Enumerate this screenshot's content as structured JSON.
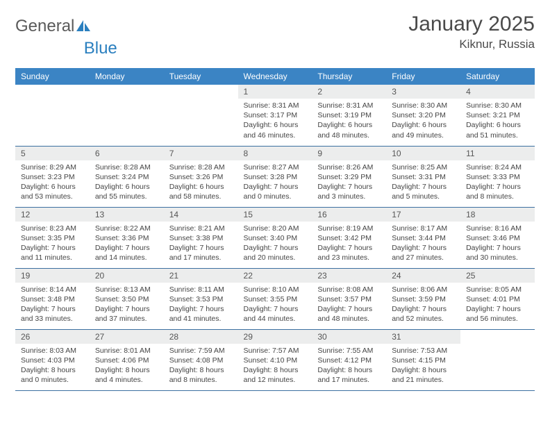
{
  "logo": {
    "text1": "General",
    "text2": "Blue"
  },
  "title": "January 2025",
  "location": "Kiknur, Russia",
  "colors": {
    "header_bg": "#3b84c4",
    "header_fg": "#ffffff",
    "daynum_bg": "#eceded",
    "row_border": "#3b6fa0",
    "logo_gray": "#5a5a5a",
    "logo_blue": "#2a7fbf"
  },
  "weekdays": [
    "Sunday",
    "Monday",
    "Tuesday",
    "Wednesday",
    "Thursday",
    "Friday",
    "Saturday"
  ],
  "weeks": [
    [
      {
        "n": "",
        "sr": "",
        "ss": "",
        "d1": "",
        "d2": ""
      },
      {
        "n": "",
        "sr": "",
        "ss": "",
        "d1": "",
        "d2": ""
      },
      {
        "n": "",
        "sr": "",
        "ss": "",
        "d1": "",
        "d2": ""
      },
      {
        "n": "1",
        "sr": "Sunrise: 8:31 AM",
        "ss": "Sunset: 3:17 PM",
        "d1": "Daylight: 6 hours",
        "d2": "and 46 minutes."
      },
      {
        "n": "2",
        "sr": "Sunrise: 8:31 AM",
        "ss": "Sunset: 3:19 PM",
        "d1": "Daylight: 6 hours",
        "d2": "and 48 minutes."
      },
      {
        "n": "3",
        "sr": "Sunrise: 8:30 AM",
        "ss": "Sunset: 3:20 PM",
        "d1": "Daylight: 6 hours",
        "d2": "and 49 minutes."
      },
      {
        "n": "4",
        "sr": "Sunrise: 8:30 AM",
        "ss": "Sunset: 3:21 PM",
        "d1": "Daylight: 6 hours",
        "d2": "and 51 minutes."
      }
    ],
    [
      {
        "n": "5",
        "sr": "Sunrise: 8:29 AM",
        "ss": "Sunset: 3:23 PM",
        "d1": "Daylight: 6 hours",
        "d2": "and 53 minutes."
      },
      {
        "n": "6",
        "sr": "Sunrise: 8:28 AM",
        "ss": "Sunset: 3:24 PM",
        "d1": "Daylight: 6 hours",
        "d2": "and 55 minutes."
      },
      {
        "n": "7",
        "sr": "Sunrise: 8:28 AM",
        "ss": "Sunset: 3:26 PM",
        "d1": "Daylight: 6 hours",
        "d2": "and 58 minutes."
      },
      {
        "n": "8",
        "sr": "Sunrise: 8:27 AM",
        "ss": "Sunset: 3:28 PM",
        "d1": "Daylight: 7 hours",
        "d2": "and 0 minutes."
      },
      {
        "n": "9",
        "sr": "Sunrise: 8:26 AM",
        "ss": "Sunset: 3:29 PM",
        "d1": "Daylight: 7 hours",
        "d2": "and 3 minutes."
      },
      {
        "n": "10",
        "sr": "Sunrise: 8:25 AM",
        "ss": "Sunset: 3:31 PM",
        "d1": "Daylight: 7 hours",
        "d2": "and 5 minutes."
      },
      {
        "n": "11",
        "sr": "Sunrise: 8:24 AM",
        "ss": "Sunset: 3:33 PM",
        "d1": "Daylight: 7 hours",
        "d2": "and 8 minutes."
      }
    ],
    [
      {
        "n": "12",
        "sr": "Sunrise: 8:23 AM",
        "ss": "Sunset: 3:35 PM",
        "d1": "Daylight: 7 hours",
        "d2": "and 11 minutes."
      },
      {
        "n": "13",
        "sr": "Sunrise: 8:22 AM",
        "ss": "Sunset: 3:36 PM",
        "d1": "Daylight: 7 hours",
        "d2": "and 14 minutes."
      },
      {
        "n": "14",
        "sr": "Sunrise: 8:21 AM",
        "ss": "Sunset: 3:38 PM",
        "d1": "Daylight: 7 hours",
        "d2": "and 17 minutes."
      },
      {
        "n": "15",
        "sr": "Sunrise: 8:20 AM",
        "ss": "Sunset: 3:40 PM",
        "d1": "Daylight: 7 hours",
        "d2": "and 20 minutes."
      },
      {
        "n": "16",
        "sr": "Sunrise: 8:19 AM",
        "ss": "Sunset: 3:42 PM",
        "d1": "Daylight: 7 hours",
        "d2": "and 23 minutes."
      },
      {
        "n": "17",
        "sr": "Sunrise: 8:17 AM",
        "ss": "Sunset: 3:44 PM",
        "d1": "Daylight: 7 hours",
        "d2": "and 27 minutes."
      },
      {
        "n": "18",
        "sr": "Sunrise: 8:16 AM",
        "ss": "Sunset: 3:46 PM",
        "d1": "Daylight: 7 hours",
        "d2": "and 30 minutes."
      }
    ],
    [
      {
        "n": "19",
        "sr": "Sunrise: 8:14 AM",
        "ss": "Sunset: 3:48 PM",
        "d1": "Daylight: 7 hours",
        "d2": "and 33 minutes."
      },
      {
        "n": "20",
        "sr": "Sunrise: 8:13 AM",
        "ss": "Sunset: 3:50 PM",
        "d1": "Daylight: 7 hours",
        "d2": "and 37 minutes."
      },
      {
        "n": "21",
        "sr": "Sunrise: 8:11 AM",
        "ss": "Sunset: 3:53 PM",
        "d1": "Daylight: 7 hours",
        "d2": "and 41 minutes."
      },
      {
        "n": "22",
        "sr": "Sunrise: 8:10 AM",
        "ss": "Sunset: 3:55 PM",
        "d1": "Daylight: 7 hours",
        "d2": "and 44 minutes."
      },
      {
        "n": "23",
        "sr": "Sunrise: 8:08 AM",
        "ss": "Sunset: 3:57 PM",
        "d1": "Daylight: 7 hours",
        "d2": "and 48 minutes."
      },
      {
        "n": "24",
        "sr": "Sunrise: 8:06 AM",
        "ss": "Sunset: 3:59 PM",
        "d1": "Daylight: 7 hours",
        "d2": "and 52 minutes."
      },
      {
        "n": "25",
        "sr": "Sunrise: 8:05 AM",
        "ss": "Sunset: 4:01 PM",
        "d1": "Daylight: 7 hours",
        "d2": "and 56 minutes."
      }
    ],
    [
      {
        "n": "26",
        "sr": "Sunrise: 8:03 AM",
        "ss": "Sunset: 4:03 PM",
        "d1": "Daylight: 8 hours",
        "d2": "and 0 minutes."
      },
      {
        "n": "27",
        "sr": "Sunrise: 8:01 AM",
        "ss": "Sunset: 4:06 PM",
        "d1": "Daylight: 8 hours",
        "d2": "and 4 minutes."
      },
      {
        "n": "28",
        "sr": "Sunrise: 7:59 AM",
        "ss": "Sunset: 4:08 PM",
        "d1": "Daylight: 8 hours",
        "d2": "and 8 minutes."
      },
      {
        "n": "29",
        "sr": "Sunrise: 7:57 AM",
        "ss": "Sunset: 4:10 PM",
        "d1": "Daylight: 8 hours",
        "d2": "and 12 minutes."
      },
      {
        "n": "30",
        "sr": "Sunrise: 7:55 AM",
        "ss": "Sunset: 4:12 PM",
        "d1": "Daylight: 8 hours",
        "d2": "and 17 minutes."
      },
      {
        "n": "31",
        "sr": "Sunrise: 7:53 AM",
        "ss": "Sunset: 4:15 PM",
        "d1": "Daylight: 8 hours",
        "d2": "and 21 minutes."
      },
      {
        "n": "",
        "sr": "",
        "ss": "",
        "d1": "",
        "d2": ""
      }
    ]
  ]
}
